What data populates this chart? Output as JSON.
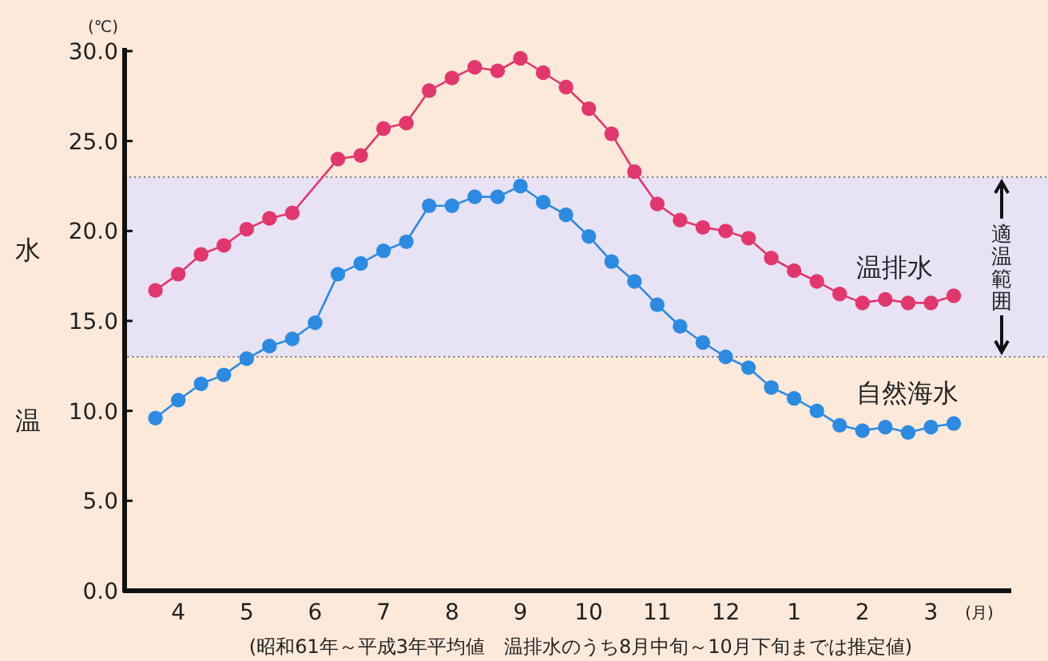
{
  "chart_data": {
    "type": "line",
    "ylabel": "水温",
    "marker": "circle",
    "line_style": "solid",
    "grid": false,
    "categories": [
      null,
      "4",
      null,
      null,
      "5",
      null,
      null,
      "6",
      null,
      null,
      "7",
      null,
      null,
      "8",
      null,
      null,
      "9",
      null,
      null,
      "10",
      null,
      null,
      "11",
      null,
      null,
      "12",
      null,
      null,
      "1",
      null,
      null,
      "2",
      null,
      null,
      "3",
      null
    ],
    "ylim": [
      0,
      30
    ],
    "yticks": [
      {
        "value": 0,
        "label": "0.0"
      },
      {
        "value": 5,
        "label": "5.0"
      },
      {
        "value": 10,
        "label": "10.0"
      },
      {
        "value": 15,
        "label": "15.0"
      },
      {
        "value": 20,
        "label": "20.0"
      },
      {
        "value": 25,
        "label": "25.0"
      },
      {
        "value": 30,
        "label": "30.0"
      }
    ],
    "bands": [
      {
        "axis": "y",
        "from": 13,
        "to": 23,
        "label": "適温範囲",
        "color": "#e8e2f5"
      }
    ],
    "series": [
      {
        "name": "温排水",
        "color": "#e2376d",
        "values": [
          16.7,
          17.6,
          18.7,
          19.2,
          20.1,
          20.7,
          21.0,
          null,
          24.0,
          24.2,
          25.7,
          26.0,
          27.8,
          28.5,
          29.1,
          28.9,
          29.6,
          28.8,
          28.0,
          26.8,
          25.4,
          23.3,
          21.5,
          20.6,
          20.2,
          20.0,
          19.6,
          18.5,
          17.8,
          17.2,
          16.5,
          16.0,
          16.2,
          16.0,
          16.0,
          16.4
        ]
      },
      {
        "name": "自然海水",
        "color": "#2b8be2",
        "values": [
          9.6,
          10.6,
          11.5,
          12.0,
          12.9,
          13.6,
          14.0,
          14.9,
          17.6,
          18.2,
          18.9,
          19.4,
          21.4,
          21.4,
          21.9,
          21.9,
          22.5,
          21.6,
          20.9,
          19.7,
          18.3,
          17.2,
          15.9,
          14.7,
          13.8,
          13.0,
          12.4,
          11.3,
          10.7,
          10.0,
          9.2,
          8.9,
          9.1,
          8.8,
          9.1,
          9.3
        ]
      }
    ],
    "annotations": [
      "(℃)",
      "(月)",
      "(昭和61年～平成3年平均値　温排水のうち8月中旬～10月下旬までは推定値)"
    ]
  }
}
